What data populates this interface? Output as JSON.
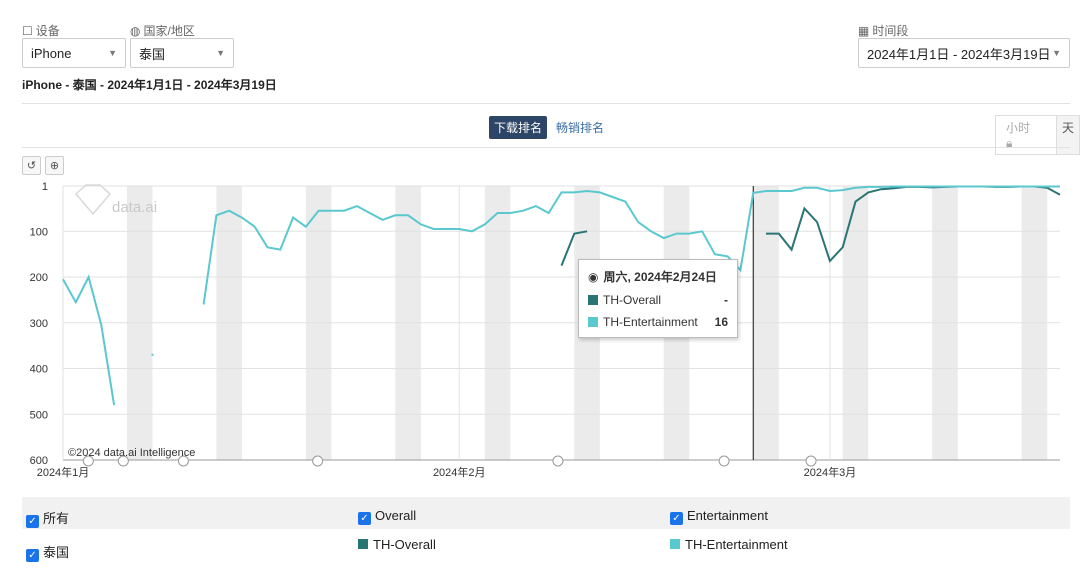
{
  "filters": {
    "device_label": "设备",
    "device_value": "iPhone",
    "country_label": "国家/地区",
    "country_value": "泰国",
    "period_label": "时间段",
    "period_value": "2024年1月1日 - 2024年3月19日"
  },
  "subtitle": "iPhone - 泰国 - 2024年1月1日 - 2024年3月19日",
  "tabs": {
    "download": "下载排名",
    "grossing": "畅销排名"
  },
  "granularity": {
    "hour": "小时",
    "day": "天"
  },
  "tooltip": {
    "date": "周六, 2024年2月24日",
    "rows": [
      {
        "name": "TH-Overall",
        "value": "-"
      },
      {
        "name": "TH-Entertainment",
        "value": "16"
      }
    ]
  },
  "watermark": "data.ai",
  "copyright": "©2024 data.ai Intelligence",
  "legend": {
    "all": "所有",
    "overall": "Overall",
    "entertainment": "Entertainment",
    "country": "泰国",
    "th_overall": "TH-Overall",
    "th_entertainment": "TH-Entertainment"
  },
  "colors": {
    "overall": "#2a7474",
    "entertainment": "#5bc8cf",
    "weekend": "#ebebeb"
  },
  "chart_data": {
    "type": "line",
    "x_start": "2024-01-01",
    "x_end": "2024-03-19",
    "y_reversed": true,
    "ylim": [
      1,
      600
    ],
    "y_ticks": [
      "1",
      "100",
      "200",
      "300",
      "400",
      "500",
      "600"
    ],
    "x_ticks": [
      "2024年1月",
      "2024年2月",
      "2024年3月"
    ],
    "x_tick_dates": [
      "2024-01-01",
      "2024-02-01",
      "2024-03-01"
    ],
    "weekend_start_dates": [
      "2024-01-06",
      "2024-01-13",
      "2024-01-20",
      "2024-01-27",
      "2024-02-03",
      "2024-02-10",
      "2024-02-17",
      "2024-02-24",
      "2024-03-02",
      "2024-03-09",
      "2024-03-16"
    ],
    "crosshair_date": "2024-02-24",
    "series": [
      {
        "name": "TH-Overall",
        "points": [
          [
            "2024-02-09",
            175
          ],
          [
            "2024-02-10",
            105
          ],
          [
            "2024-02-11",
            100
          ],
          [
            "2024-02-25",
            105
          ],
          [
            "2024-02-26",
            105
          ],
          [
            "2024-02-27",
            140
          ],
          [
            "2024-02-28",
            50
          ],
          [
            "2024-02-29",
            80
          ],
          [
            "2024-03-01",
            165
          ],
          [
            "2024-03-02",
            135
          ],
          [
            "2024-03-03",
            35
          ],
          [
            "2024-03-04",
            15
          ],
          [
            "2024-03-05",
            8
          ],
          [
            "2024-03-06",
            6
          ],
          [
            "2024-03-07",
            3
          ],
          [
            "2024-03-08",
            3
          ],
          [
            "2024-03-09",
            4
          ],
          [
            "2024-03-10",
            3
          ],
          [
            "2024-03-11",
            2
          ],
          [
            "2024-03-12",
            2
          ],
          [
            "2024-03-13",
            2
          ],
          [
            "2024-03-14",
            3
          ],
          [
            "2024-03-15",
            3
          ],
          [
            "2024-03-16",
            2
          ],
          [
            "2024-03-17",
            2
          ],
          [
            "2024-03-18",
            5
          ],
          [
            "2024-03-19",
            20
          ]
        ]
      },
      {
        "name": "TH-Entertainment",
        "points": [
          [
            "2024-01-01",
            205
          ],
          [
            "2024-01-02",
            255
          ],
          [
            "2024-01-03",
            200
          ],
          [
            "2024-01-04",
            305
          ],
          [
            "2024-01-05",
            480
          ],
          [
            "2024-01-08",
            370
          ],
          [
            "2024-01-12",
            260
          ],
          [
            "2024-01-13",
            65
          ],
          [
            "2024-01-14",
            55
          ],
          [
            "2024-01-15",
            70
          ],
          [
            "2024-01-16",
            90
          ],
          [
            "2024-01-17",
            135
          ],
          [
            "2024-01-18",
            140
          ],
          [
            "2024-01-19",
            70
          ],
          [
            "2024-01-20",
            90
          ],
          [
            "2024-01-21",
            55
          ],
          [
            "2024-01-22",
            55
          ],
          [
            "2024-01-23",
            55
          ],
          [
            "2024-01-24",
            45
          ],
          [
            "2024-01-25",
            60
          ],
          [
            "2024-01-26",
            75
          ],
          [
            "2024-01-27",
            65
          ],
          [
            "2024-01-28",
            65
          ],
          [
            "2024-01-29",
            85
          ],
          [
            "2024-01-30",
            95
          ],
          [
            "2024-01-31",
            95
          ],
          [
            "2024-02-01",
            95
          ],
          [
            "2024-02-02",
            100
          ],
          [
            "2024-02-03",
            85
          ],
          [
            "2024-02-04",
            60
          ],
          [
            "2024-02-05",
            60
          ],
          [
            "2024-02-06",
            55
          ],
          [
            "2024-02-07",
            45
          ],
          [
            "2024-02-08",
            60
          ],
          [
            "2024-02-09",
            15
          ],
          [
            "2024-02-10",
            15
          ],
          [
            "2024-02-11",
            12
          ],
          [
            "2024-02-12",
            15
          ],
          [
            "2024-02-13",
            25
          ],
          [
            "2024-02-14",
            35
          ],
          [
            "2024-02-15",
            80
          ],
          [
            "2024-02-16",
            100
          ],
          [
            "2024-02-17",
            115
          ],
          [
            "2024-02-18",
            105
          ],
          [
            "2024-02-19",
            105
          ],
          [
            "2024-02-20",
            100
          ],
          [
            "2024-02-21",
            150
          ],
          [
            "2024-02-22",
            155
          ],
          [
            "2024-02-23",
            185
          ],
          [
            "2024-02-24",
            16
          ],
          [
            "2024-02-25",
            12
          ],
          [
            "2024-02-26",
            12
          ],
          [
            "2024-02-27",
            12
          ],
          [
            "2024-02-28",
            5
          ],
          [
            "2024-02-29",
            5
          ],
          [
            "2024-03-01",
            12
          ],
          [
            "2024-03-02",
            10
          ],
          [
            "2024-03-03",
            5
          ],
          [
            "2024-03-04",
            3
          ],
          [
            "2024-03-05",
            3
          ],
          [
            "2024-03-06",
            2
          ],
          [
            "2024-03-07",
            2
          ],
          [
            "2024-03-08",
            2
          ],
          [
            "2024-03-09",
            2
          ],
          [
            "2024-03-10",
            2
          ],
          [
            "2024-03-11",
            2
          ],
          [
            "2024-03-12",
            2
          ],
          [
            "2024-03-13",
            2
          ],
          [
            "2024-03-14",
            2
          ],
          [
            "2024-03-15",
            2
          ],
          [
            "2024-03-16",
            2
          ],
          [
            "2024-03-17",
            2
          ],
          [
            "2024-03-18",
            2
          ],
          [
            "2024-03-19",
            2
          ]
        ]
      }
    ]
  }
}
